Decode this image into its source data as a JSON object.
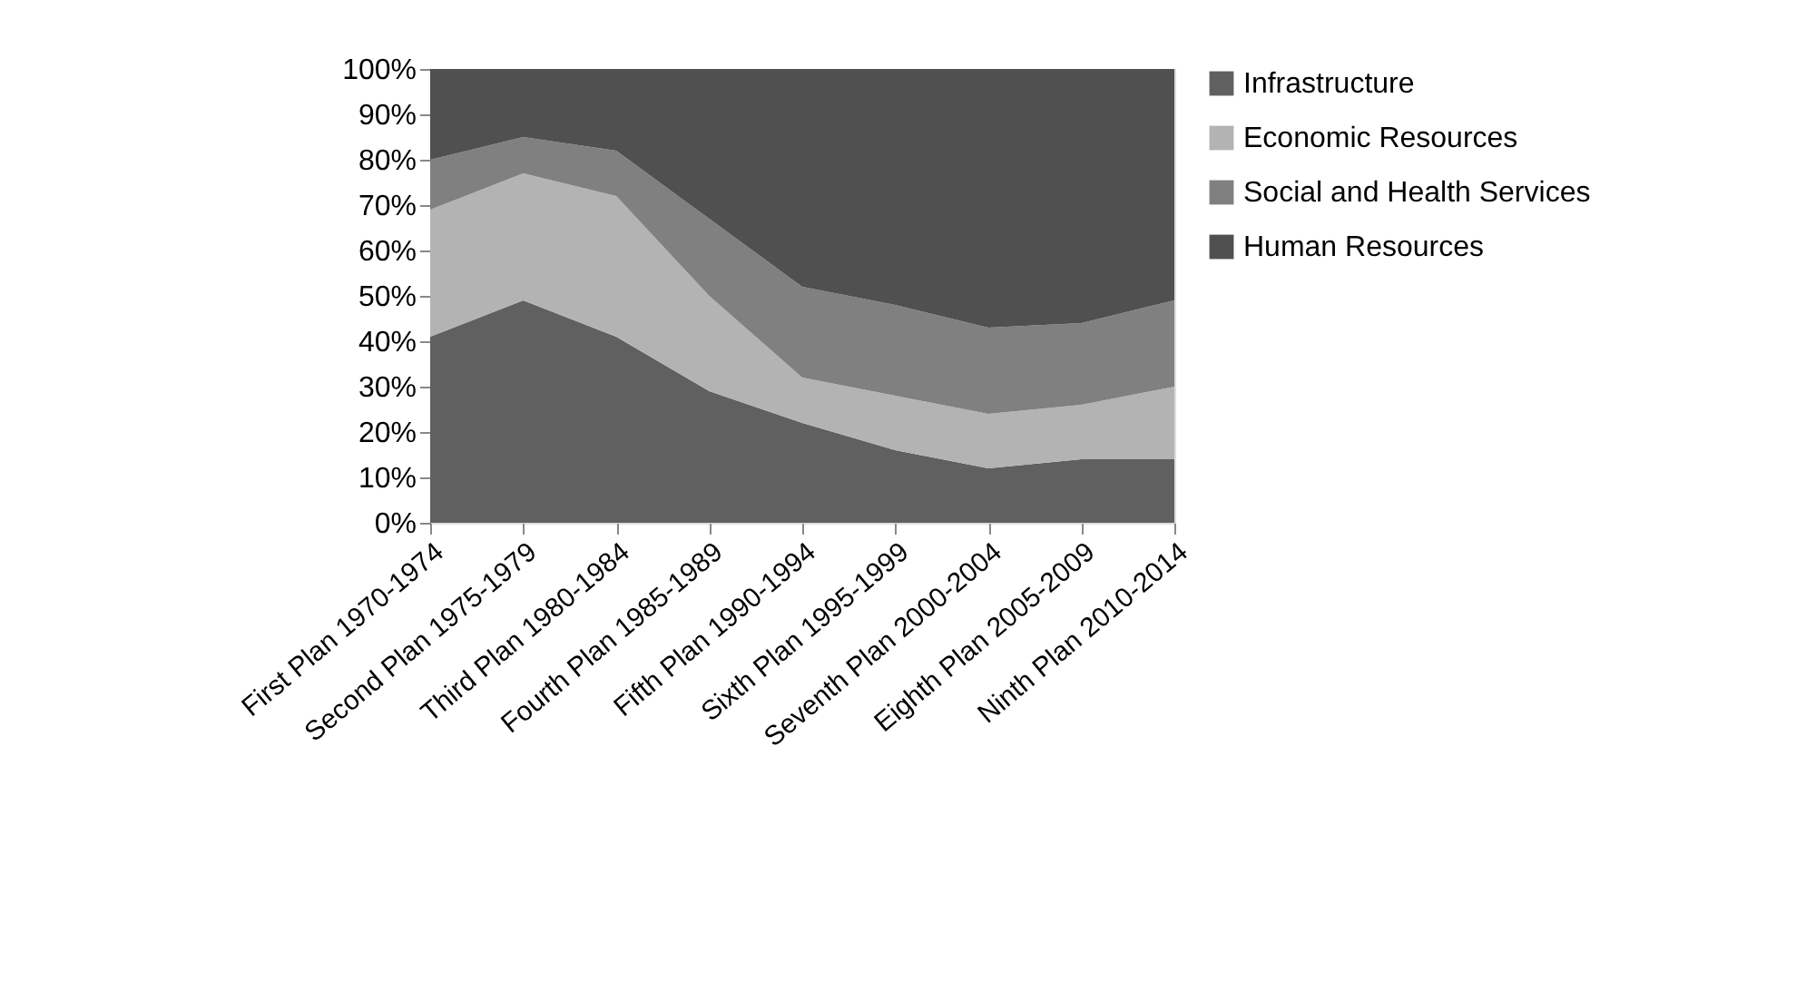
{
  "chart_data": {
    "type": "area",
    "stacked": true,
    "categories": [
      "First Plan 1970-1974",
      "Second Plan 1975-1979",
      "Third Plan 1980-1984",
      "Fourth Plan 1985-1989",
      "Fifth Plan 1990-1994",
      "Sixth Plan 1995-1999",
      "Seventh Plan 2000-2004",
      "Eighth Plan 2005-2009",
      "Ninth Plan 2010-2014"
    ],
    "series": [
      {
        "name": "Infrastructure",
        "color": "#606060",
        "values": [
          41,
          49,
          41,
          29,
          22,
          16,
          12,
          14,
          14
        ]
      },
      {
        "name": "Economic Resources",
        "color": "#b3b3b3",
        "values": [
          28,
          28,
          31,
          21,
          10,
          12,
          12,
          12,
          16
        ]
      },
      {
        "name": "Social and Health Services",
        "color": "#808080",
        "values": [
          11,
          8,
          10,
          17,
          20,
          20,
          19,
          18,
          19
        ]
      },
      {
        "name": "Human Resources",
        "color": "#505050",
        "values": [
          20,
          15,
          18,
          33,
          48,
          52,
          57,
          56,
          51
        ]
      }
    ],
    "ylim": [
      0,
      100
    ],
    "yticks": [
      {
        "value": 0,
        "label": "0%"
      },
      {
        "value": 10,
        "label": "10%"
      },
      {
        "value": 20,
        "label": "20%"
      },
      {
        "value": 30,
        "label": "30%"
      },
      {
        "value": 40,
        "label": "40%"
      },
      {
        "value": 50,
        "label": "50%"
      },
      {
        "value": 60,
        "label": "60%"
      },
      {
        "value": 70,
        "label": "70%"
      },
      {
        "value": 80,
        "label": "80%"
      },
      {
        "value": 90,
        "label": "90%"
      },
      {
        "value": 100,
        "label": "100%"
      }
    ],
    "grid": false,
    "legend": "right"
  }
}
